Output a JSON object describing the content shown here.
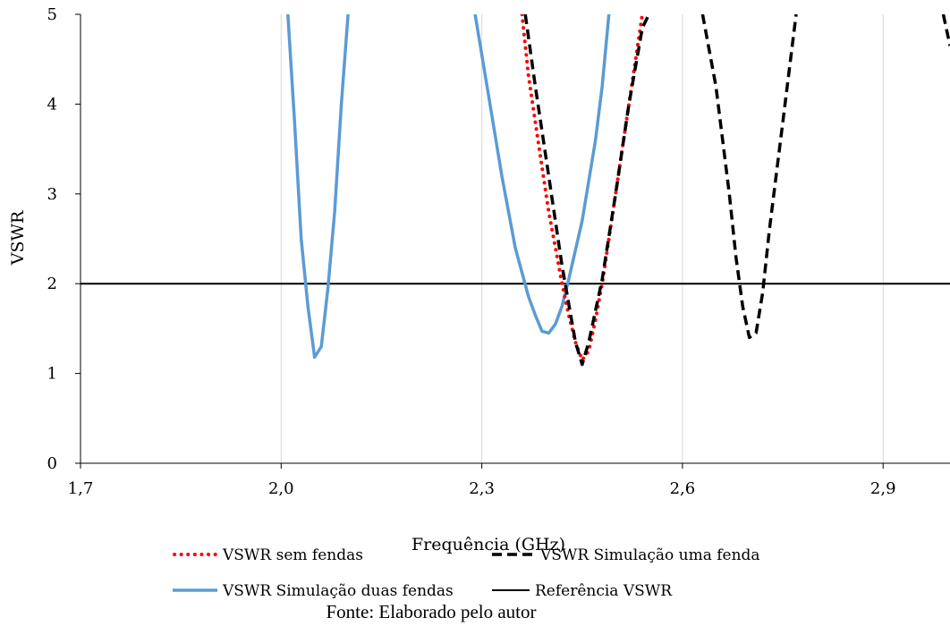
{
  "chart_data": {
    "type": "line",
    "xlabel": "Frequência (GHz)",
    "ylabel": "VSWR",
    "xlim": [
      1.7,
      3.0
    ],
    "ylim": [
      0,
      5
    ],
    "xticks": [
      "1,7",
      "2,0",
      "2,3",
      "2,6",
      "2,9"
    ],
    "xtick_values": [
      1.7,
      2.0,
      2.3,
      2.6,
      2.9
    ],
    "yticks": [
      "0",
      "1",
      "2",
      "3",
      "4",
      "5"
    ],
    "ytick_values": [
      0,
      1,
      2,
      3,
      4,
      5
    ],
    "grid": "vertical",
    "legend_position": "bottom",
    "caption": "Fonte: Elaborado pelo autor",
    "series": [
      {
        "name": "VSWR sem fendas",
        "color": "#ff0000",
        "style": "dotted",
        "points": [
          [
            2.36,
            5.0
          ],
          [
            2.37,
            4.3
          ],
          [
            2.38,
            3.8
          ],
          [
            2.39,
            3.3
          ],
          [
            2.4,
            2.8
          ],
          [
            2.41,
            2.4
          ],
          [
            2.42,
            2.0
          ],
          [
            2.43,
            1.65
          ],
          [
            2.44,
            1.35
          ],
          [
            2.45,
            1.15
          ],
          [
            2.46,
            1.25
          ],
          [
            2.47,
            1.6
          ],
          [
            2.48,
            2.0
          ],
          [
            2.49,
            2.5
          ],
          [
            2.5,
            3.0
          ],
          [
            2.51,
            3.5
          ],
          [
            2.52,
            4.0
          ],
          [
            2.53,
            4.5
          ],
          [
            2.54,
            5.0
          ]
        ]
      },
      {
        "name": "VSWR Simulação uma fenda",
        "color": "#000000",
        "style": "dashed",
        "points": [
          [
            2.365,
            5.0
          ],
          [
            2.38,
            4.2
          ],
          [
            2.4,
            3.2
          ],
          [
            2.42,
            2.2
          ],
          [
            2.44,
            1.35
          ],
          [
            2.45,
            1.1
          ],
          [
            2.46,
            1.35
          ],
          [
            2.48,
            2.05
          ],
          [
            2.5,
            3.0
          ],
          [
            2.52,
            4.0
          ],
          [
            2.54,
            4.85
          ],
          [
            2.55,
            5.0
          ],
          [
            null,
            null
          ],
          [
            2.63,
            5.0
          ],
          [
            2.65,
            4.2
          ],
          [
            2.67,
            3.0
          ],
          [
            2.68,
            2.3
          ],
          [
            2.69,
            1.75
          ],
          [
            2.7,
            1.4
          ],
          [
            2.71,
            1.45
          ],
          [
            2.72,
            1.9
          ],
          [
            2.73,
            2.6
          ],
          [
            2.75,
            3.8
          ],
          [
            2.77,
            5.0
          ],
          [
            null,
            null
          ],
          [
            2.99,
            5.0
          ],
          [
            3.0,
            4.65
          ]
        ]
      },
      {
        "name": "VSWR Simulação duas fendas",
        "color": "#5b9bd5",
        "style": "solid",
        "points": [
          [
            2.01,
            5.0
          ],
          [
            2.02,
            3.8
          ],
          [
            2.03,
            2.5
          ],
          [
            2.04,
            1.75
          ],
          [
            2.05,
            1.18
          ],
          [
            2.06,
            1.3
          ],
          [
            2.07,
            1.95
          ],
          [
            2.08,
            2.8
          ],
          [
            2.09,
            4.0
          ],
          [
            2.1,
            5.0
          ],
          [
            null,
            null
          ],
          [
            2.29,
            5.0
          ],
          [
            2.31,
            4.1
          ],
          [
            2.33,
            3.2
          ],
          [
            2.35,
            2.4
          ],
          [
            2.37,
            1.85
          ],
          [
            2.38,
            1.65
          ],
          [
            2.39,
            1.47
          ],
          [
            2.4,
            1.45
          ],
          [
            2.41,
            1.55
          ],
          [
            2.42,
            1.75
          ],
          [
            2.43,
            2.05
          ],
          [
            2.45,
            2.7
          ],
          [
            2.47,
            3.6
          ],
          [
            2.48,
            4.2
          ],
          [
            2.49,
            5.0
          ]
        ]
      },
      {
        "name": "Referência VSWR",
        "color": "#000000",
        "style": "solid",
        "points": [
          [
            1.7,
            2.0
          ],
          [
            3.0,
            2.0
          ]
        ]
      }
    ],
    "legend_order": [
      "VSWR sem fendas",
      "VSWR Simulação uma fenda",
      "VSWR Simulação duas fendas",
      "Referência VSWR"
    ]
  }
}
